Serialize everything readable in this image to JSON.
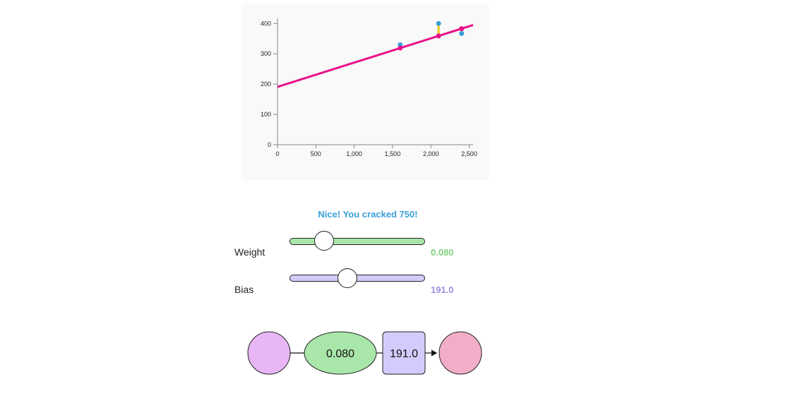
{
  "chart_data": {
    "type": "scatter",
    "x_ticks": [
      "0",
      "500",
      "1,000",
      "1,500",
      "2,000",
      "2,500"
    ],
    "y_ticks": [
      "0",
      "100",
      "200",
      "300",
      "400"
    ],
    "xlim": [
      0,
      2550
    ],
    "ylim": [
      0,
      410
    ],
    "points": [
      {
        "x": 1600,
        "y": 330
      },
      {
        "x": 2100,
        "y": 400
      },
      {
        "x": 2400,
        "y": 367
      }
    ],
    "predictions": [
      {
        "x": 1600,
        "y": 319
      },
      {
        "x": 2100,
        "y": 359
      },
      {
        "x": 2400,
        "y": 383
      }
    ],
    "line": {
      "x_start": 0,
      "y_start": 191,
      "x_end": 2550,
      "y_end": 395
    },
    "colors": {
      "points": "#3a9fd8",
      "line": "#e8118a",
      "error": "#f2c81a"
    }
  },
  "message": "Nice! You cracked 750!",
  "weight": {
    "label": "Weight",
    "value": "0.080",
    "fraction": 0.25,
    "track_color": "#a9e6a9",
    "value_color": "#7fcf7f"
  },
  "bias": {
    "label": "Bias",
    "value": "191.0",
    "fraction": 0.43,
    "track_color": "#d1ccfb",
    "value_color": "#9a91e0"
  },
  "flow": {
    "weight_text": "0.080",
    "bias_text": "191.0",
    "colors": {
      "input": "#e8b6f5",
      "weight": "#a9e6a9",
      "bias": "#d1ccfb",
      "output": "#f2aec8"
    }
  }
}
